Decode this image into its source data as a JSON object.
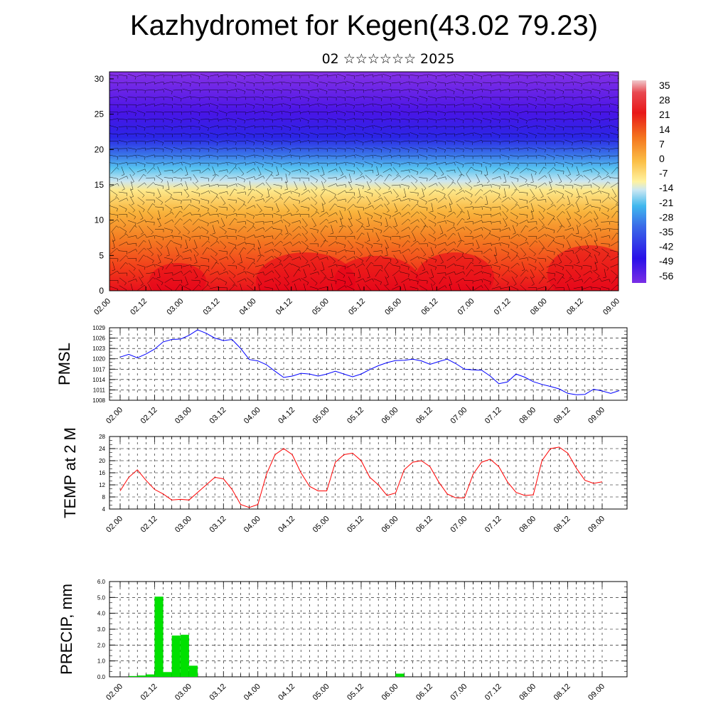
{
  "title": "Kazhydromet for Kegen(43.02 79.23)",
  "subtitle": "02 ☆☆☆☆☆☆ 2025",
  "time_labels": [
    "02.00",
    "02.12",
    "03.00",
    "03.12",
    "04.00",
    "04.12",
    "05.00",
    "05.12",
    "06.00",
    "06.12",
    "07.00",
    "07.12",
    "08.00",
    "08.12",
    "09.00"
  ],
  "colors": {
    "pmsl_line": "#0000ff",
    "temp_line": "#ff0000",
    "precip_bar": "#00e000",
    "grid": "#000000"
  },
  "chart_data": [
    {
      "type": "heatmap",
      "panel": "cross-section",
      "description_visible": "temperature by height with wind barbs",
      "y_ticks": [
        0,
        5,
        10,
        15,
        20,
        25,
        30
      ],
      "ylim": [
        0,
        31
      ],
      "colorbar": {
        "labels": [
          "35",
          "28",
          "21",
          "14",
          "7",
          "0",
          "-7",
          "-14",
          "-21",
          "-28",
          "-35",
          "-42",
          "-49",
          "-56"
        ],
        "range": [
          -63,
          38
        ]
      }
    },
    {
      "type": "line",
      "panel": "pmsl",
      "ylabel": "PMSL",
      "y_ticks": [
        "1029",
        "1026",
        "1023",
        "1020",
        "1017",
        "1014",
        "1011",
        "1008"
      ],
      "ylim": [
        1008,
        1029
      ],
      "x_step_hours": 3,
      "values": [
        1020.5,
        1021.3,
        1020.3,
        1021.4,
        1022.8,
        1024.9,
        1025.6,
        1025.7,
        1026.8,
        1028.4,
        1027.4,
        1026.0,
        1025.3,
        1025.6,
        1023.0,
        1019.8,
        1019.4,
        1018.3,
        1016.4,
        1014.6,
        1015.0,
        1015.8,
        1015.6,
        1015.0,
        1015.6,
        1016.4,
        1015.6,
        1014.8,
        1015.6,
        1016.9,
        1018.0,
        1018.9,
        1019.5,
        1019.6,
        1019.9,
        1019.4,
        1018.4,
        1019.2,
        1019.9,
        1018.6,
        1017.0,
        1016.8,
        1016.7,
        1015.0,
        1012.8,
        1013.3,
        1015.6,
        1014.7,
        1013.4,
        1012.6,
        1012.0,
        1011.3,
        1010.0,
        1009.6,
        1009.7,
        1011.2,
        1010.7,
        1010.0,
        1010.8
      ]
    },
    {
      "type": "line",
      "panel": "temperature",
      "ylabel": "TEMP at 2 M",
      "y_ticks": [
        "28",
        "24",
        "20",
        "16",
        "12",
        "8",
        "4"
      ],
      "ylim": [
        4,
        28
      ],
      "x_step_hours": 3,
      "values": [
        10,
        14.5,
        17,
        13.5,
        10.5,
        9,
        7,
        7.2,
        7,
        9.5,
        12,
        14.5,
        14,
        10.5,
        5.5,
        4.5,
        5.5,
        15.5,
        22,
        24,
        22,
        16,
        11.5,
        10,
        10,
        19.5,
        22,
        22.5,
        20,
        14.5,
        12,
        8.5,
        9.3,
        17,
        19.5,
        20,
        18,
        13,
        9,
        7.7,
        7.7,
        15.5,
        19.5,
        20.5,
        18,
        13,
        9.5,
        8.5,
        8.7,
        20,
        24,
        24.5,
        22.5,
        17.5,
        13.5,
        12.5,
        13
      ]
    },
    {
      "type": "bar",
      "panel": "precipitation",
      "ylabel": "PRECIP, mm",
      "y_ticks": [
        "6.0",
        "5.0",
        "4.0",
        "3.0",
        "2.0",
        "1.0",
        "0.0"
      ],
      "ylim": [
        0,
        6
      ],
      "x_step_hours": 3,
      "values": [
        0,
        0.05,
        0.08,
        0.15,
        5.05,
        0.3,
        2.6,
        2.65,
        0.7,
        0,
        0,
        0,
        0,
        0,
        0,
        0,
        0,
        0,
        0,
        0,
        0,
        0,
        0,
        0,
        0,
        0,
        0,
        0,
        0,
        0,
        0,
        0,
        0.2,
        0,
        0,
        0,
        0,
        0,
        0,
        0,
        0,
        0,
        0,
        0,
        0,
        0,
        0,
        0,
        0,
        0,
        0,
        0,
        0,
        0,
        0,
        0
      ]
    }
  ]
}
